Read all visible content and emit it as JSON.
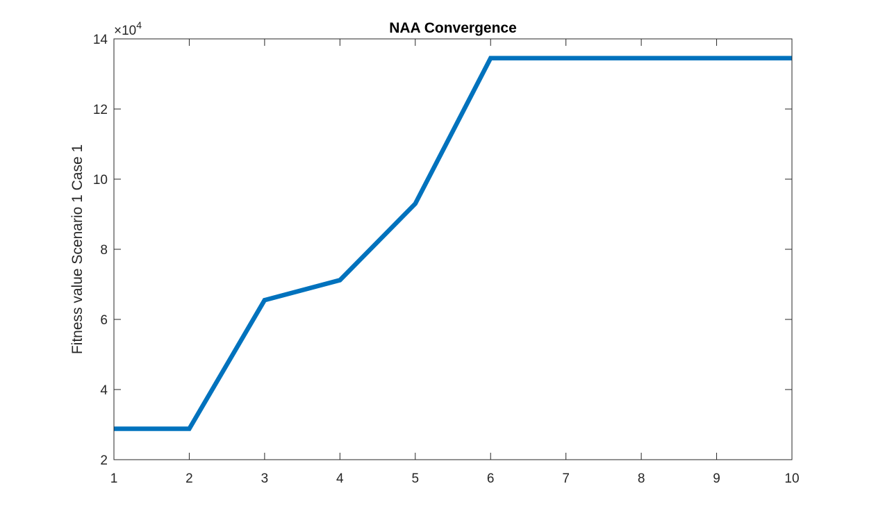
{
  "chart_data": {
    "type": "line",
    "title": "NAA Convergence",
    "xlabel": "",
    "ylabel": "Fitness value Scenario 1 Case 1",
    "xlim": [
      1,
      10
    ],
    "ylim": [
      2,
      14
    ],
    "x_ticks": [
      1,
      2,
      3,
      4,
      5,
      6,
      7,
      8,
      9,
      10
    ],
    "y_ticks": [
      2,
      4,
      6,
      8,
      10,
      12,
      14
    ],
    "y_exponent_base": "×10",
    "y_exponent_power": "4",
    "grid": false,
    "series": [
      {
        "x": [
          1,
          2,
          3,
          4,
          5,
          6,
          7,
          8,
          9,
          10
        ],
        "values": [
          2.88,
          2.88,
          6.55,
          7.12,
          9.3,
          13.45,
          13.45,
          13.45,
          13.45,
          13.45
        ],
        "color": "#0072BD"
      }
    ]
  }
}
